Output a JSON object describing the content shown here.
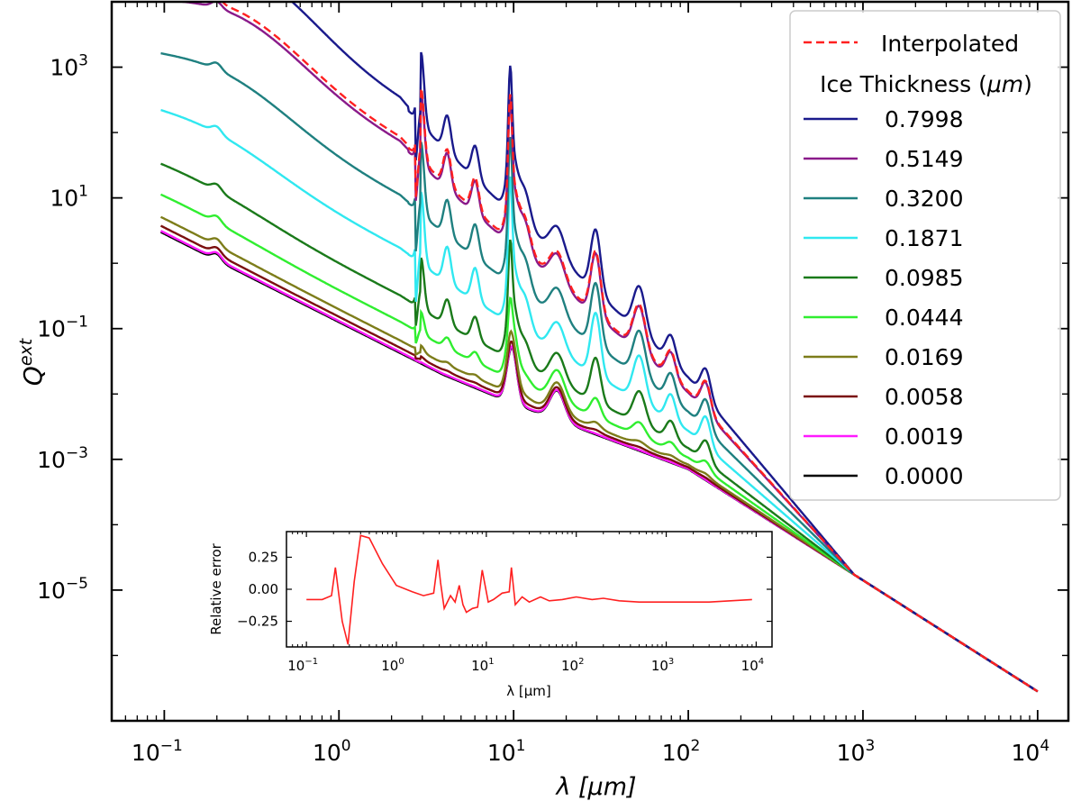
{
  "chart_data": {
    "type": "line",
    "xscale": "log",
    "yscale": "log",
    "xlabel": "λ [μm]",
    "ylabel": "Q",
    "ylabel_sup": "ext",
    "xlim": [
      0.05,
      15000
    ],
    "ylim": [
      1e-07,
      10000.0
    ],
    "x_ticks": [
      {
        "value": 0.1,
        "base": "10",
        "exp": "−1"
      },
      {
        "value": 1,
        "base": "10",
        "exp": "0"
      },
      {
        "value": 10,
        "base": "10",
        "exp": "1"
      },
      {
        "value": 100,
        "base": "10",
        "exp": "2"
      },
      {
        "value": 1000,
        "base": "10",
        "exp": "3"
      },
      {
        "value": 10000,
        "base": "10",
        "exp": "4"
      }
    ],
    "y_ticks": [
      {
        "value": 1000,
        "base": "10",
        "exp": "3"
      },
      {
        "value": 10,
        "base": "10",
        "exp": "1"
      },
      {
        "value": 0.1,
        "base": "10",
        "exp": "−1"
      },
      {
        "value": 0.001,
        "base": "10",
        "exp": "−3"
      },
      {
        "value": 1e-05,
        "base": "10",
        "exp": "−5"
      }
    ],
    "legend": {
      "position": "upper-right",
      "interp_label": "Interpolated",
      "title": "Ice Thickness (",
      "title_unit": "μm",
      "title_close": ")"
    },
    "interpolated": {
      "name": "Interpolated",
      "color": "#ff2020",
      "dashed": true,
      "reference": "0.5149"
    },
    "series": [
      {
        "name": "0.7998",
        "color": "#1a1a8c",
        "offset": 2.4
      },
      {
        "name": "0.5149",
        "color": "#8a1a8a",
        "offset": 2.0
      },
      {
        "name": "0.3200",
        "color": "#1f8080",
        "offset": 1.5
      },
      {
        "name": "0.1871",
        "color": "#30e8f0",
        "offset": 1.0
      },
      {
        "name": "0.0985",
        "color": "#1a7a1a",
        "offset": 0.55
      },
      {
        "name": "0.0444",
        "color": "#30ee30",
        "offset": 0.3
      },
      {
        "name": "0.0169",
        "color": "#7d7d1a",
        "offset": 0.12
      },
      {
        "name": "0.0058",
        "color": "#7a0f0f",
        "offset": 0.05
      },
      {
        "name": "0.0019",
        "color": "#ff1aff",
        "offset": 0.01
      },
      {
        "name": "0.0000",
        "color": "#000000",
        "offset": 0.0
      }
    ],
    "inset": {
      "type": "line",
      "xscale": "log",
      "xlabel": "λ [μm]",
      "ylabel": "Relative error",
      "xlim": [
        0.06,
        15000
      ],
      "ylim": [
        -0.45,
        0.45
      ],
      "color": "#ff2020",
      "x_ticks": [
        {
          "value": 0.1,
          "base": "10",
          "exp": "−1"
        },
        {
          "value": 1,
          "base": "10",
          "exp": "0"
        },
        {
          "value": 10,
          "base": "10",
          "exp": "1"
        },
        {
          "value": 100,
          "base": "10",
          "exp": "2"
        },
        {
          "value": 1000,
          "base": "10",
          "exp": "3"
        },
        {
          "value": 10000,
          "base": "10",
          "exp": "4"
        }
      ],
      "y_ticks": [
        {
          "value": 0.25,
          "label": "0.25"
        },
        {
          "value": 0.0,
          "label": "0.00"
        },
        {
          "value": -0.25,
          "label": "−0.25"
        }
      ],
      "x": [
        0.1,
        0.15,
        0.19,
        0.21,
        0.25,
        0.29,
        0.34,
        0.4,
        0.5,
        0.7,
        1.0,
        1.5,
        2.0,
        2.6,
        2.9,
        3.1,
        3.4,
        4.0,
        4.5,
        5.0,
        5.5,
        6.0,
        7.0,
        8.0,
        9.0,
        9.7,
        10.5,
        12,
        15,
        18,
        19,
        21,
        25,
        30,
        40,
        50,
        70,
        100,
        150,
        200,
        300,
        500,
        1000,
        3000,
        9000
      ],
      "y": [
        -0.08,
        -0.08,
        -0.05,
        0.17,
        -0.25,
        -0.43,
        0.06,
        0.42,
        0.4,
        0.2,
        0.03,
        -0.02,
        -0.05,
        -0.03,
        0.23,
        0.05,
        -0.15,
        -0.05,
        -0.1,
        0.03,
        -0.12,
        -0.18,
        -0.15,
        -0.14,
        0.15,
        0.03,
        -0.1,
        -0.08,
        -0.03,
        -0.02,
        0.17,
        -0.12,
        -0.06,
        -0.1,
        -0.06,
        -0.09,
        -0.08,
        -0.06,
        -0.08,
        -0.07,
        -0.09,
        -0.1,
        -0.1,
        -0.1,
        -0.08
      ]
    }
  }
}
